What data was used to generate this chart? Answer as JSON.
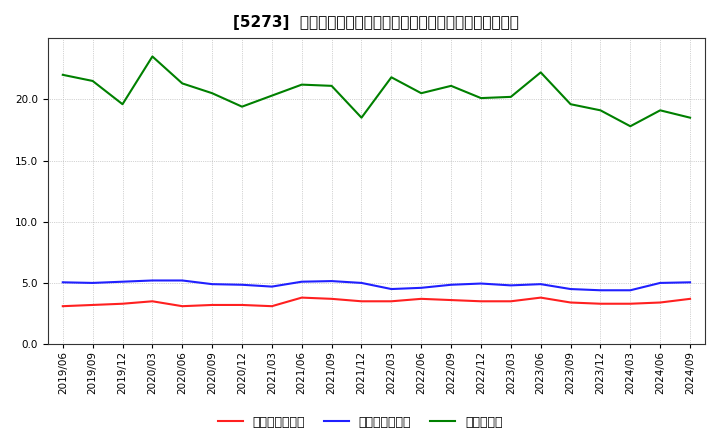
{
  "title": "[5273]  売上債権回転率、買入債務回転率、在庫回転率の推移",
  "x_labels": [
    "2019/06",
    "2019/09",
    "2019/12",
    "2020/03",
    "2020/06",
    "2020/09",
    "2020/12",
    "2021/03",
    "2021/06",
    "2021/09",
    "2021/12",
    "2022/03",
    "2022/06",
    "2022/09",
    "2022/12",
    "2023/03",
    "2023/06",
    "2023/09",
    "2023/12",
    "2024/03",
    "2024/06",
    "2024/09"
  ],
  "uriage": [
    3.1,
    3.2,
    3.3,
    3.5,
    3.1,
    3.2,
    3.2,
    3.1,
    3.8,
    3.7,
    3.5,
    3.5,
    3.7,
    3.6,
    3.5,
    3.5,
    3.8,
    3.4,
    3.3,
    3.3,
    3.4,
    3.7
  ],
  "kaiire": [
    5.05,
    5.0,
    5.1,
    5.2,
    5.2,
    4.9,
    4.85,
    4.7,
    5.1,
    5.15,
    5.0,
    4.5,
    4.6,
    4.85,
    4.95,
    4.8,
    4.9,
    4.5,
    4.4,
    4.4,
    5.0,
    5.05
  ],
  "zaiko": [
    22.0,
    21.5,
    19.6,
    23.5,
    21.3,
    20.5,
    19.4,
    20.3,
    21.2,
    21.1,
    18.5,
    21.8,
    20.5,
    21.1,
    20.1,
    20.2,
    22.2,
    19.6,
    19.1,
    17.8,
    19.1,
    18.5
  ],
  "color_uriage": "#ff2020",
  "color_kaiire": "#2020ff",
  "color_zaiko": "#008000",
  "label_uriage": "売上債権回転率",
  "label_kaiire": "買入債務回転率",
  "label_zaiko": "在庫回転率",
  "title_bracket": "[5273]",
  "title_rest": "売上債権回転率、買入債務回転率、在庫回転率の推移",
  "ylim": [
    0,
    25
  ],
  "yticks": [
    0.0,
    5.0,
    10.0,
    15.0,
    20.0
  ],
  "background_color": "#ffffff",
  "plot_bg_color": "#ffffff",
  "grid_color": "#aaaaaa",
  "title_fontsize": 11,
  "axis_fontsize": 7.5,
  "legend_fontsize": 9,
  "linewidth": 1.5
}
